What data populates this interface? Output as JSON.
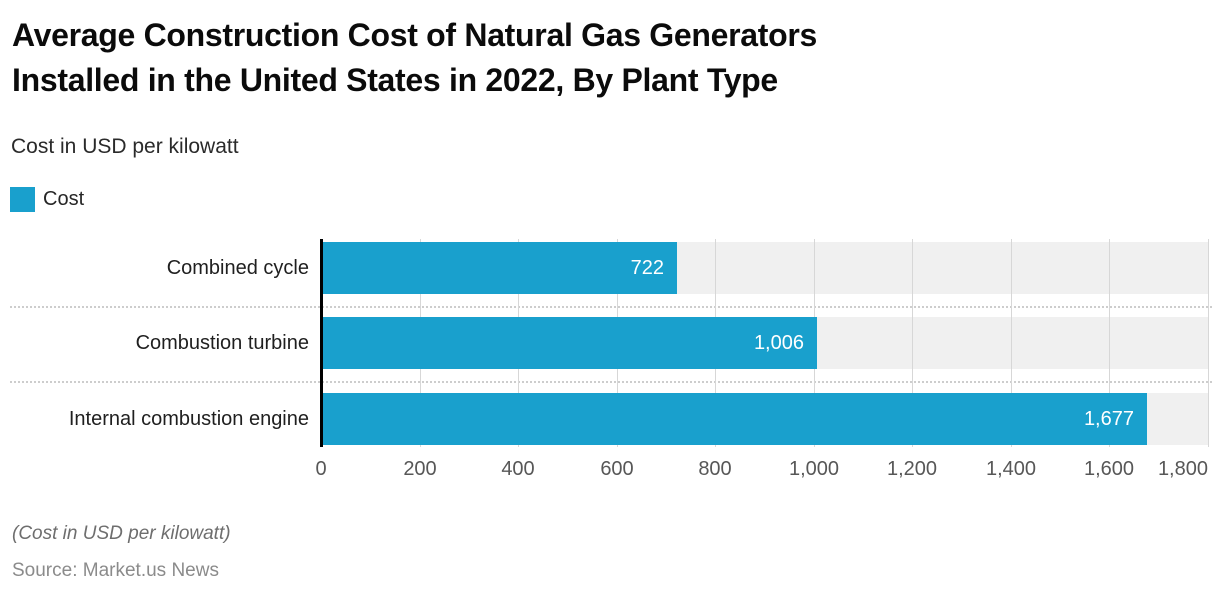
{
  "header": {
    "title_line1": "Average Construction Cost of Natural Gas Generators",
    "title_line2": "Installed in the United States in 2022, By Plant Type",
    "subtitle": "Cost in USD per kilowatt"
  },
  "legend": {
    "items": [
      {
        "label": "Cost",
        "color": "#19a0cd"
      }
    ]
  },
  "chart_data": {
    "type": "bar",
    "orientation": "horizontal",
    "title": "Average Construction Cost of Natural Gas Generators Installed in the United States in 2022, By Plant Type",
    "subtitle": "Cost in USD per kilowatt",
    "categories": [
      "Combined cycle",
      "Combustion turbine",
      "Internal combustion engine"
    ],
    "series": [
      {
        "name": "Cost",
        "color": "#19a0cd",
        "values": [
          722,
          1006,
          1677
        ],
        "value_labels": [
          "722",
          "1,006",
          "1,677"
        ]
      }
    ],
    "xlabel": "",
    "ylabel": "",
    "axis": {
      "min": 0,
      "max": 1800,
      "tick_interval": 200,
      "tick_labels": [
        "0",
        "200",
        "400",
        "600",
        "800",
        "1,000",
        "1,200",
        "1,400",
        "1,600",
        "1,800"
      ]
    },
    "grid": true,
    "track_color": "#f0f0f0",
    "gridline_color": "#d7d7d7",
    "legend_position": "top-left"
  },
  "footer": {
    "note": "(Cost in USD per kilowatt)",
    "source": "Source: Market.us News"
  }
}
